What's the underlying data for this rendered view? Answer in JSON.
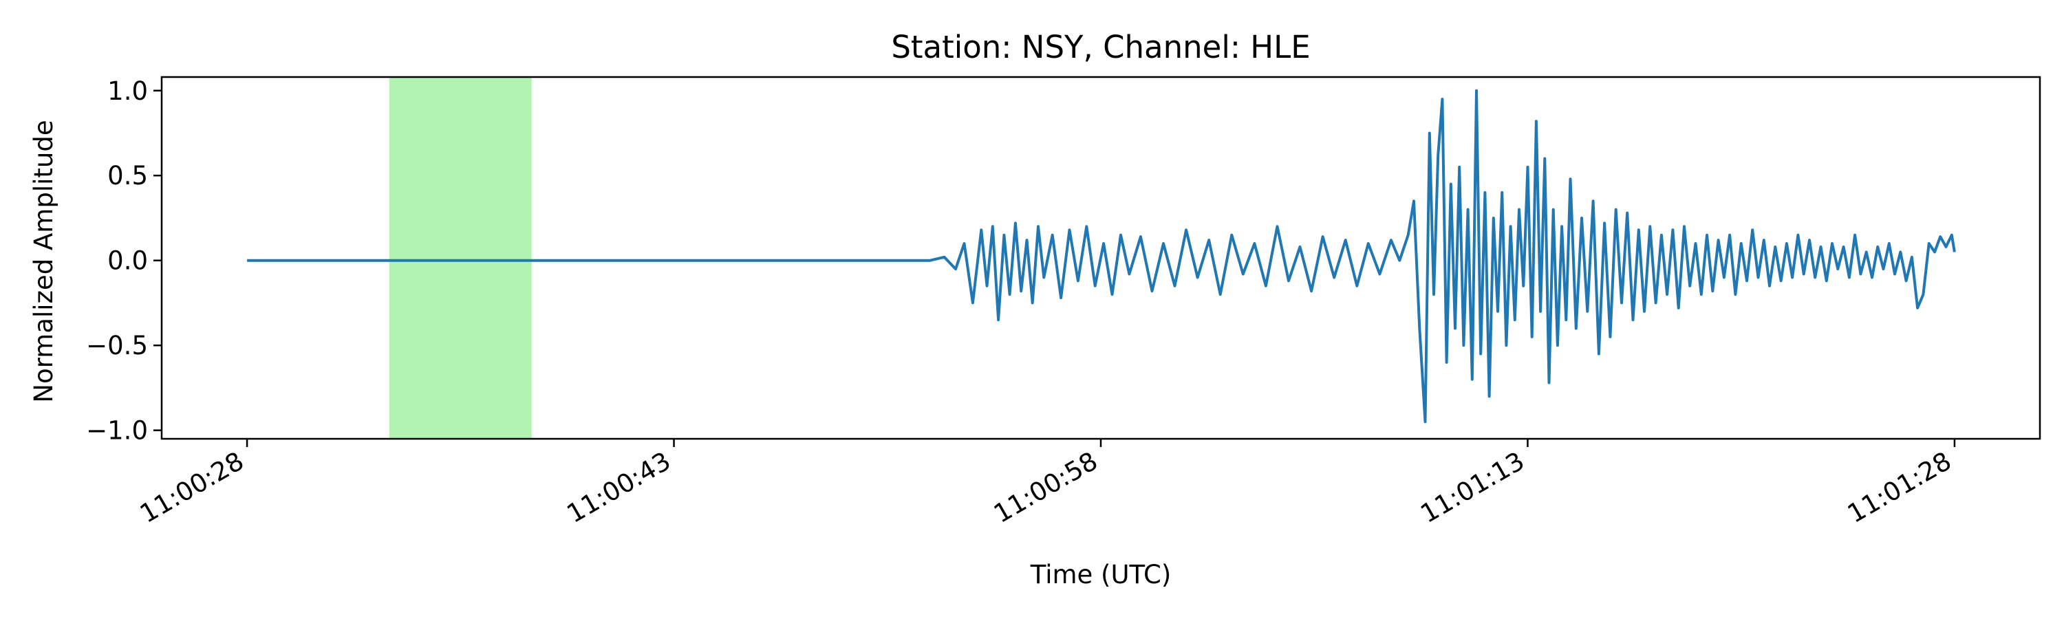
{
  "chart_data": {
    "type": "line",
    "title": "Station: NSY, Channel: HLE",
    "xlabel": "Time (UTC)",
    "ylabel": "Normalized Amplitude",
    "x_unit": "seconds",
    "x_start": "11:00:28",
    "xlim": [
      -3,
      63
    ],
    "ylim": [
      -1.05,
      1.08
    ],
    "yticks": [
      {
        "value": -1.0,
        "label": "−1.0"
      },
      {
        "value": -0.5,
        "label": "−0.5"
      },
      {
        "value": 0.0,
        "label": "0.0"
      },
      {
        "value": 0.5,
        "label": "0.5"
      },
      {
        "value": 1.0,
        "label": "1.0"
      }
    ],
    "xticks": [
      {
        "value": 0,
        "label": "11:00:28"
      },
      {
        "value": 15,
        "label": "11:00:43"
      },
      {
        "value": 30,
        "label": "11:00:58"
      },
      {
        "value": 45,
        "label": "11:01:13"
      },
      {
        "value": 60,
        "label": "11:01:28"
      }
    ],
    "highlight": {
      "x_start": 5.0,
      "x_end": 10.0,
      "color": "#b2f2b2"
    },
    "series": [
      {
        "color": "#1f77b4",
        "x": [
          0,
          15,
          24,
          24.5,
          24.9,
          25.2,
          25.5,
          25.8,
          26.0,
          26.2,
          26.4,
          26.6,
          26.8,
          27.0,
          27.2,
          27.4,
          27.6,
          27.8,
          28.0,
          28.3,
          28.6,
          28.9,
          29.2,
          29.5,
          29.8,
          30.1,
          30.4,
          30.7,
          31.0,
          31.4,
          31.8,
          32.2,
          32.6,
          33.0,
          33.4,
          33.8,
          34.2,
          34.6,
          35.0,
          35.4,
          35.8,
          36.2,
          36.6,
          37.0,
          37.4,
          37.8,
          38.2,
          38.6,
          39.0,
          39.4,
          39.8,
          40.2,
          40.5,
          40.8,
          41.0,
          41.2,
          41.4,
          41.55,
          41.7,
          41.85,
          42.0,
          42.15,
          42.3,
          42.45,
          42.6,
          42.75,
          42.9,
          43.05,
          43.2,
          43.35,
          43.5,
          43.65,
          43.8,
          43.95,
          44.1,
          44.25,
          44.4,
          44.55,
          44.7,
          44.85,
          45.0,
          45.15,
          45.3,
          45.45,
          45.6,
          45.75,
          45.9,
          46.05,
          46.2,
          46.35,
          46.5,
          46.7,
          46.9,
          47.1,
          47.3,
          47.5,
          47.7,
          47.9,
          48.1,
          48.3,
          48.5,
          48.7,
          48.9,
          49.1,
          49.3,
          49.5,
          49.7,
          49.9,
          50.1,
          50.3,
          50.5,
          50.7,
          50.9,
          51.1,
          51.3,
          51.5,
          51.7,
          51.9,
          52.1,
          52.3,
          52.5,
          52.7,
          52.9,
          53.1,
          53.3,
          53.5,
          53.7,
          53.9,
          54.1,
          54.3,
          54.5,
          54.7,
          54.9,
          55.1,
          55.3,
          55.5,
          55.7,
          55.9,
          56.1,
          56.3,
          56.5,
          56.7,
          56.9,
          57.1,
          57.3,
          57.5,
          57.7,
          57.9,
          58.1,
          58.3,
          58.5,
          58.7,
          58.9,
          59.1,
          59.3,
          59.5,
          59.7,
          59.9,
          60.0
        ],
        "y": [
          0.0,
          0.0,
          0.0,
          0.02,
          -0.05,
          0.1,
          -0.25,
          0.18,
          -0.15,
          0.2,
          -0.35,
          0.15,
          -0.2,
          0.22,
          -0.18,
          0.12,
          -0.25,
          0.2,
          -0.1,
          0.15,
          -0.22,
          0.18,
          -0.12,
          0.2,
          -0.15,
          0.1,
          -0.2,
          0.15,
          -0.08,
          0.14,
          -0.18,
          0.1,
          -0.15,
          0.18,
          -0.1,
          0.12,
          -0.2,
          0.15,
          -0.08,
          0.1,
          -0.15,
          0.2,
          -0.12,
          0.08,
          -0.18,
          0.14,
          -0.1,
          0.12,
          -0.15,
          0.1,
          -0.08,
          0.12,
          0.0,
          0.15,
          0.35,
          -0.4,
          -0.95,
          0.75,
          -0.2,
          0.62,
          0.95,
          -0.6,
          0.45,
          -0.4,
          0.55,
          -0.5,
          0.3,
          -0.7,
          1.0,
          -0.55,
          0.4,
          -0.8,
          0.25,
          -0.3,
          0.4,
          -0.5,
          0.2,
          -0.35,
          0.3,
          -0.15,
          0.55,
          -0.45,
          0.82,
          -0.3,
          0.6,
          -0.72,
          0.3,
          -0.5,
          0.2,
          -0.35,
          0.48,
          -0.4,
          0.25,
          -0.3,
          0.35,
          -0.55,
          0.22,
          -0.45,
          0.3,
          -0.25,
          0.28,
          -0.35,
          0.18,
          -0.3,
          0.2,
          -0.25,
          0.15,
          -0.2,
          0.18,
          -0.28,
          0.2,
          -0.15,
          0.1,
          -0.2,
          0.15,
          -0.18,
          0.12,
          -0.1,
          0.15,
          -0.2,
          0.1,
          -0.12,
          0.18,
          -0.1,
          0.12,
          -0.15,
          0.08,
          -0.12,
          0.1,
          -0.1,
          0.15,
          -0.08,
          0.12,
          -0.1,
          0.08,
          -0.12,
          0.1,
          -0.05,
          0.08,
          -0.1,
          0.15,
          -0.08,
          0.05,
          -0.1,
          0.08,
          -0.05,
          0.1,
          -0.08,
          0.05,
          -0.12,
          0.02,
          -0.28,
          -0.2,
          0.1,
          0.05,
          0.14,
          0.08,
          0.15,
          0.05
        ]
      }
    ],
    "grid": false,
    "legend": "none"
  }
}
